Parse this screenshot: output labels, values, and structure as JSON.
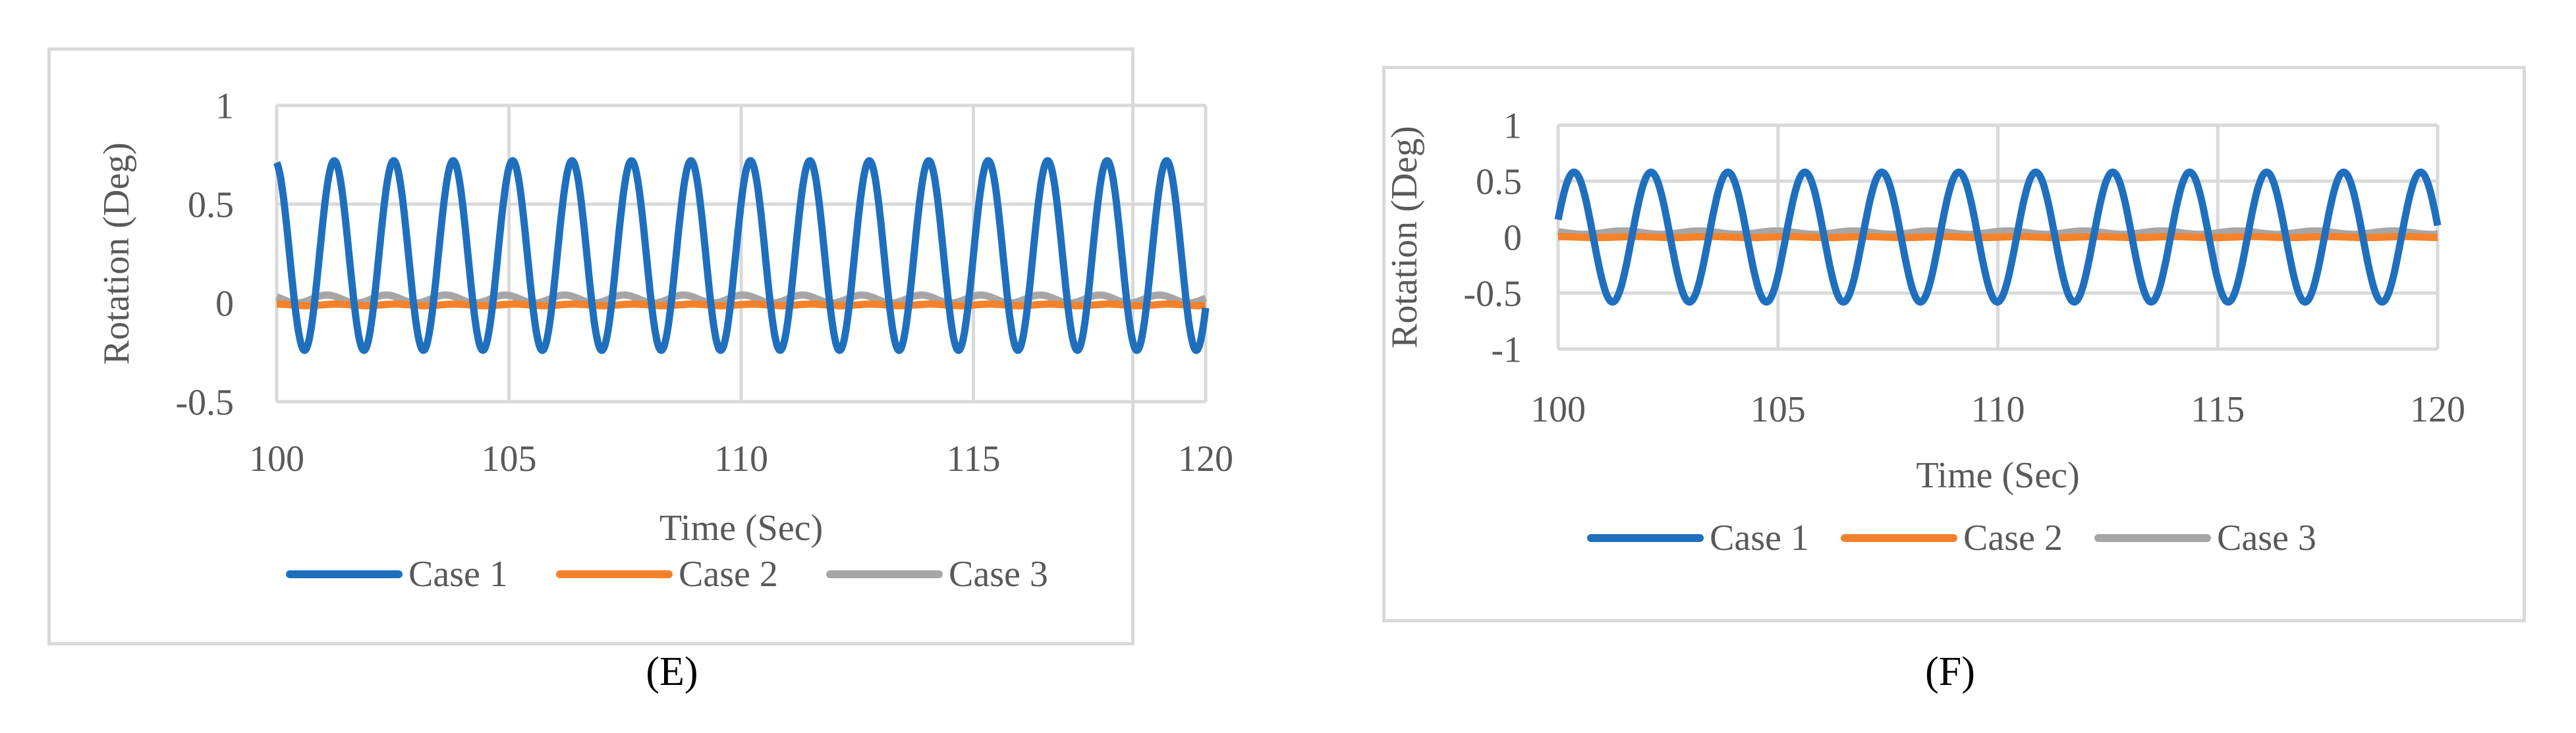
{
  "panels": [
    {
      "caption": "(E)",
      "chart_data": {
        "type": "line",
        "title": "",
        "xlabel": "Time (Sec)",
        "ylabel": "Rotation (Deg)",
        "xlim": [
          100,
          120
        ],
        "ylim": [
          -0.5,
          1
        ],
        "xticks": [
          "100",
          "105",
          "110",
          "115",
          "120"
        ],
        "yticks": [
          "1",
          "0.5",
          "0",
          "-0.5"
        ],
        "grid": true,
        "legend_position": "bottom",
        "series": [
          {
            "name": "Case 1",
            "color": "#1f6fbf",
            "center": 0.24,
            "amplitude": 0.48,
            "period": 1.28,
            "phase": 0.2
          },
          {
            "name": "Case 2",
            "color": "#f5822a",
            "center": -0.01,
            "amplitude": 0.004,
            "period": 1.28,
            "phase": 0.0
          },
          {
            "name": "Case 3",
            "color": "#a6a6a6",
            "center": 0.02,
            "amplitude": 0.02,
            "period": 1.28,
            "phase": 1.0
          }
        ]
      }
    },
    {
      "caption": "(F)",
      "chart_data": {
        "type": "line",
        "title": "",
        "xlabel": "Time (Sec)",
        "ylabel": "Rotation (Deg)",
        "xlim": [
          100,
          120
        ],
        "ylim": [
          -1,
          1
        ],
        "xticks": [
          "100",
          "105",
          "110",
          "115",
          "120"
        ],
        "yticks": [
          "1",
          "0.5",
          "0",
          "-0.5",
          "-1"
        ],
        "grid": true,
        "legend_position": "bottom",
        "series": [
          {
            "name": "Case 1",
            "color": "#1f6fbf",
            "center": 0.0,
            "amplitude": 0.58,
            "period": 1.75,
            "phase": -1.3
          },
          {
            "name": "Case 2",
            "color": "#f5822a",
            "center": 0.0,
            "amplitude": 0.004,
            "period": 1.75,
            "phase": 0.0
          },
          {
            "name": "Case 3",
            "color": "#a6a6a6",
            "center": 0.04,
            "amplitude": 0.015,
            "period": 1.75,
            "phase": 1.0
          }
        ]
      }
    }
  ]
}
